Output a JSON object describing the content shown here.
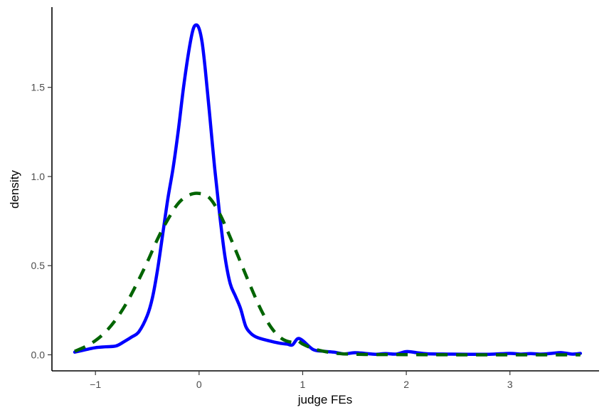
{
  "chart_data": {
    "type": "line",
    "title": "",
    "xlabel": "judge FEs",
    "ylabel": "density",
    "xlim": [
      -1.42,
      3.86
    ],
    "ylim": [
      -0.09,
      1.95
    ],
    "x_ticks": [
      -1,
      0,
      1,
      2,
      3
    ],
    "x_tick_labels": [
      "−1",
      "0",
      "1",
      "2",
      "3"
    ],
    "y_ticks": [
      0.0,
      0.5,
      1.0,
      1.5
    ],
    "y_tick_labels": [
      "0.0",
      "0.5",
      "1.0",
      "1.5"
    ],
    "grid": false,
    "legend": "none",
    "series": [
      {
        "color": "#0000ff",
        "style": "solid",
        "points": [
          [
            -1.2,
            0.015
          ],
          [
            -1.1,
            0.028
          ],
          [
            -1.0,
            0.04
          ],
          [
            -0.9,
            0.045
          ],
          [
            -0.8,
            0.05
          ],
          [
            -0.72,
            0.075
          ],
          [
            -0.65,
            0.1
          ],
          [
            -0.58,
            0.13
          ],
          [
            -0.5,
            0.22
          ],
          [
            -0.45,
            0.32
          ],
          [
            -0.4,
            0.48
          ],
          [
            -0.35,
            0.68
          ],
          [
            -0.3,
            0.88
          ],
          [
            -0.25,
            1.05
          ],
          [
            -0.2,
            1.26
          ],
          [
            -0.15,
            1.5
          ],
          [
            -0.1,
            1.7
          ],
          [
            -0.06,
            1.82
          ],
          [
            -0.03,
            1.85
          ],
          [
            0.0,
            1.83
          ],
          [
            0.03,
            1.75
          ],
          [
            0.06,
            1.6
          ],
          [
            0.1,
            1.36
          ],
          [
            0.15,
            1.05
          ],
          [
            0.2,
            0.78
          ],
          [
            0.25,
            0.55
          ],
          [
            0.3,
            0.4
          ],
          [
            0.35,
            0.33
          ],
          [
            0.4,
            0.26
          ],
          [
            0.45,
            0.16
          ],
          [
            0.5,
            0.12
          ],
          [
            0.55,
            0.1
          ],
          [
            0.6,
            0.09
          ],
          [
            0.7,
            0.075
          ],
          [
            0.78,
            0.065
          ],
          [
            0.85,
            0.06
          ],
          [
            0.9,
            0.055
          ],
          [
            0.95,
            0.09
          ],
          [
            1.0,
            0.08
          ],
          [
            1.1,
            0.03
          ],
          [
            1.2,
            0.02
          ],
          [
            1.3,
            0.015
          ],
          [
            1.4,
            0.005
          ],
          [
            1.5,
            0.012
          ],
          [
            1.6,
            0.008
          ],
          [
            1.7,
            0.003
          ],
          [
            1.8,
            0.007
          ],
          [
            1.9,
            0.004
          ],
          [
            2.0,
            0.018
          ],
          [
            2.1,
            0.012
          ],
          [
            2.2,
            0.006
          ],
          [
            2.4,
            0.004
          ],
          [
            2.6,
            0.003
          ],
          [
            2.8,
            0.003
          ],
          [
            3.0,
            0.008
          ],
          [
            3.1,
            0.004
          ],
          [
            3.2,
            0.007
          ],
          [
            3.3,
            0.004
          ],
          [
            3.4,
            0.008
          ],
          [
            3.5,
            0.012
          ],
          [
            3.6,
            0.004
          ],
          [
            3.68,
            0.008
          ]
        ]
      },
      {
        "color": "#006400",
        "style": "dashed",
        "points": [
          [
            -1.2,
            0.02
          ],
          [
            -1.1,
            0.045
          ],
          [
            -1.0,
            0.08
          ],
          [
            -0.9,
            0.13
          ],
          [
            -0.8,
            0.2
          ],
          [
            -0.7,
            0.29
          ],
          [
            -0.6,
            0.4
          ],
          [
            -0.5,
            0.52
          ],
          [
            -0.4,
            0.65
          ],
          [
            -0.3,
            0.76
          ],
          [
            -0.2,
            0.85
          ],
          [
            -0.1,
            0.895
          ],
          [
            0.0,
            0.905
          ],
          [
            0.1,
            0.88
          ],
          [
            0.2,
            0.79
          ],
          [
            0.3,
            0.66
          ],
          [
            0.4,
            0.52
          ],
          [
            0.5,
            0.38
          ],
          [
            0.6,
            0.25
          ],
          [
            0.7,
            0.15
          ],
          [
            0.8,
            0.09
          ],
          [
            0.9,
            0.07
          ],
          [
            0.95,
            0.08
          ],
          [
            1.0,
            0.06
          ],
          [
            1.1,
            0.035
          ],
          [
            1.2,
            0.02
          ],
          [
            1.3,
            0.01
          ],
          [
            1.4,
            0.005
          ],
          [
            1.6,
            0.002
          ],
          [
            2.0,
            0.001
          ],
          [
            2.5,
            0.0
          ],
          [
            3.0,
            0.0
          ],
          [
            3.5,
            0.0
          ],
          [
            3.68,
            0.0
          ]
        ]
      }
    ]
  }
}
